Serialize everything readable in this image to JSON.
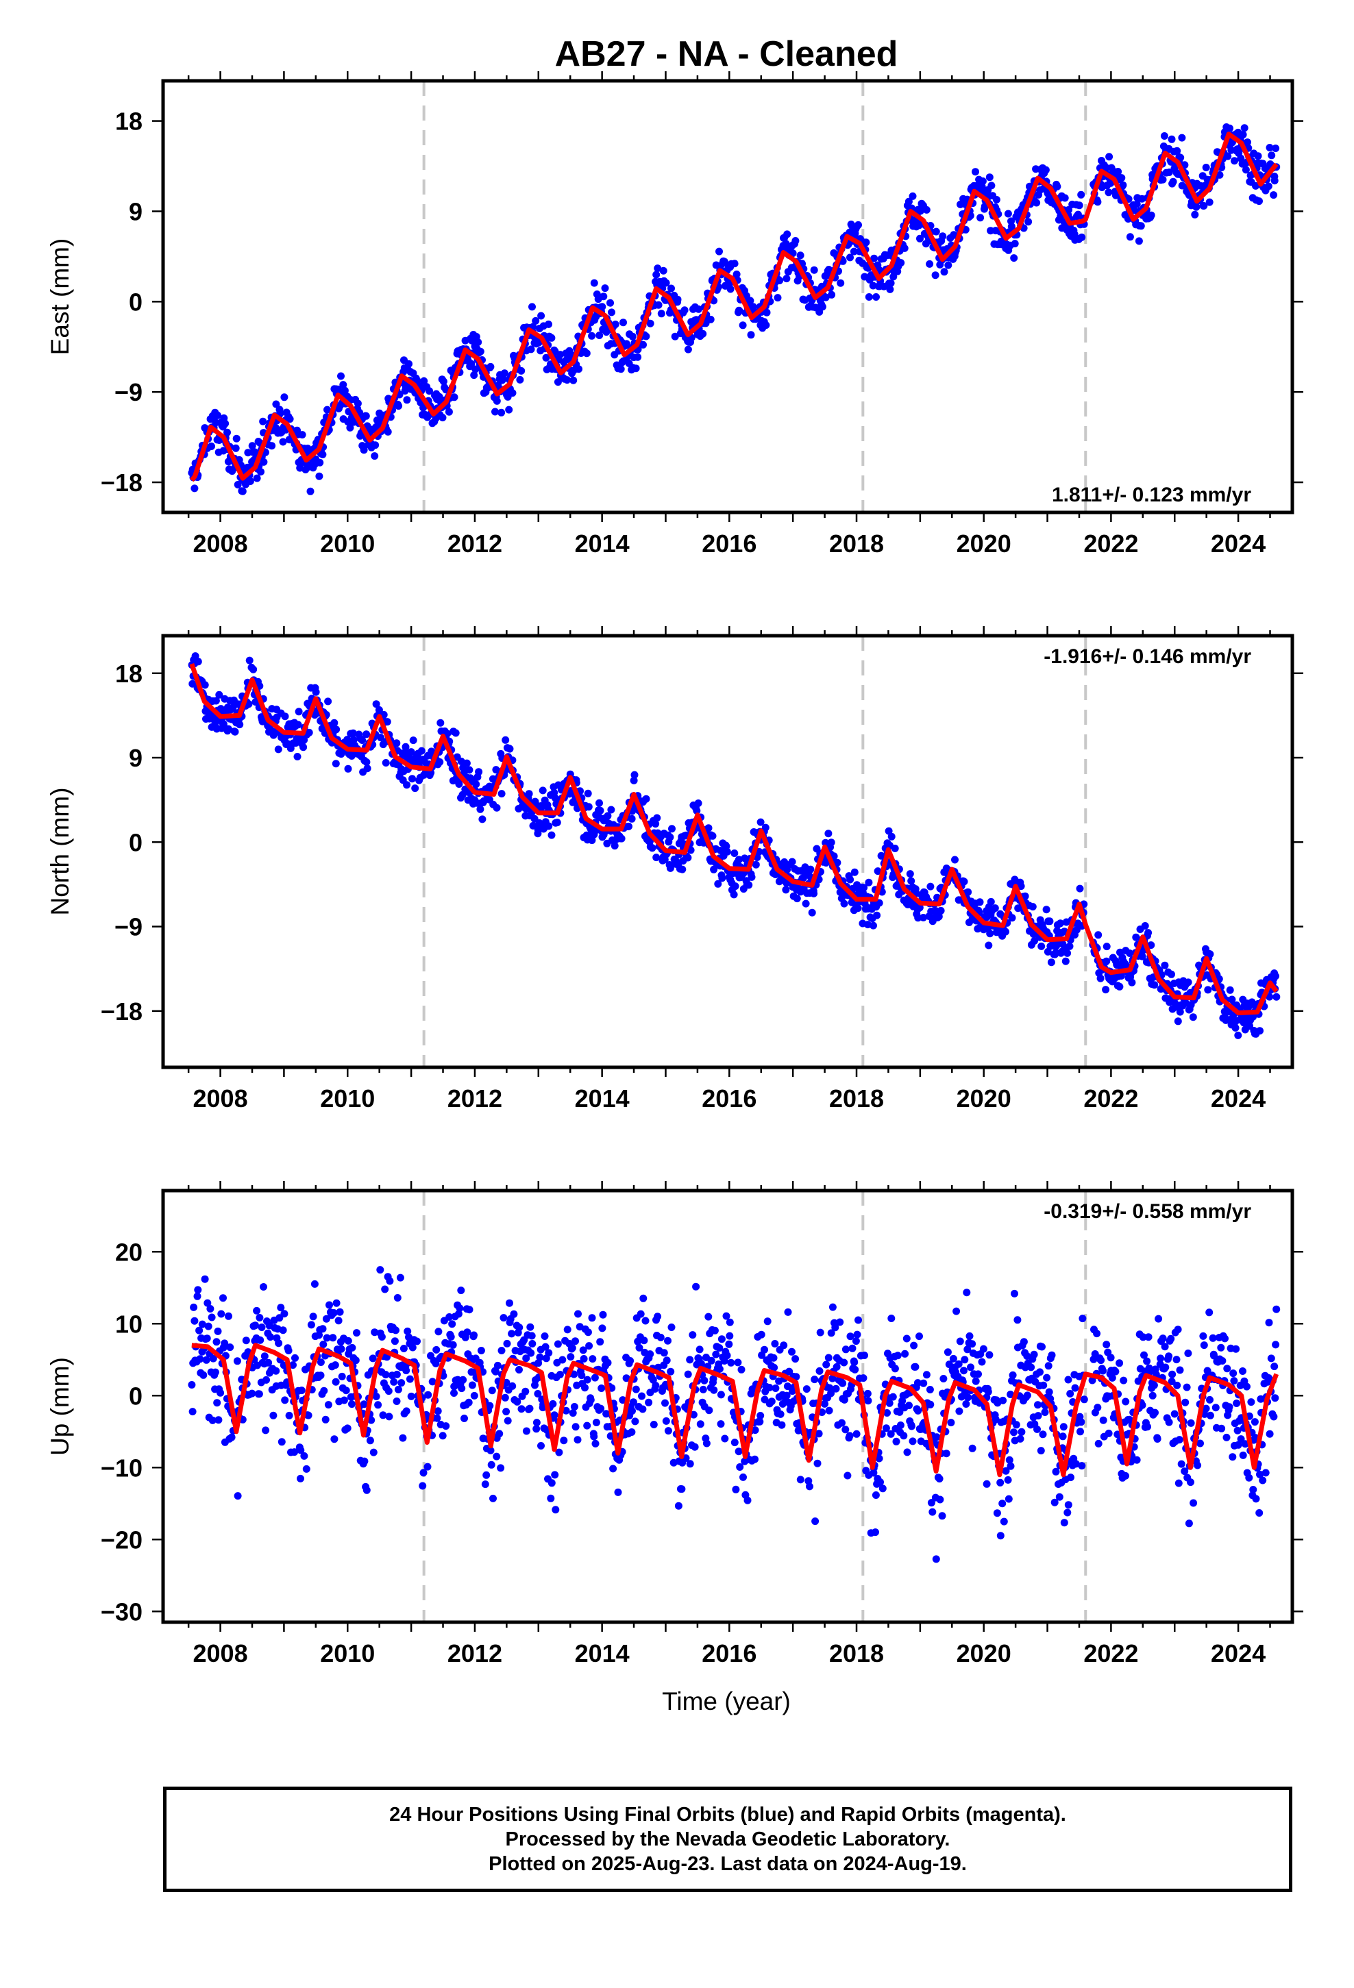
{
  "figure": {
    "title": "AB27  - NA - Cleaned",
    "xlabel": "Time (year)",
    "footer_lines": [
      "24 Hour Positions Using Final Orbits (blue) and Rapid Orbits (magenta).",
      "Processed by the Nevada Geodetic Laboratory.",
      "Plotted on 2025-Aug-23. Last data on 2024-Aug-19."
    ],
    "colors": {
      "points": "#0000ff",
      "model": "#ff0000",
      "breaks": "#c8c8c8",
      "axes": "#000000"
    }
  },
  "chart_data": [
    {
      "type": "scatter",
      "component": "East",
      "ylabel": "East (mm)",
      "rate_text": "1.811+/- 0.123 mm/yr",
      "rate_position": "bottom-right",
      "xlim": [
        2007.1,
        2024.85
      ],
      "ylim": [
        -21,
        22
      ],
      "xticks": [
        2008,
        2010,
        2012,
        2014,
        2016,
        2018,
        2020,
        2022,
        2024
      ],
      "yticks": [
        18,
        9,
        0,
        -9,
        -18
      ],
      "vertical_breaks": [
        2011.2,
        2018.1,
        2021.6
      ],
      "series": [
        {
          "kind": "model",
          "x": [
            2007.55,
            2007.6,
            2007.85,
            2008.05,
            2008.35,
            2008.55,
            2008.85,
            2009.05,
            2009.35,
            2009.55,
            2009.85,
            2010.05,
            2010.35,
            2010.55,
            2010.85,
            2011.05,
            2011.35,
            2011.55,
            2011.85,
            2012.05,
            2012.35,
            2012.55,
            2012.85,
            2013.05,
            2013.35,
            2013.55,
            2013.85,
            2014.05,
            2014.35,
            2014.55,
            2014.85,
            2015.05,
            2015.35,
            2015.55,
            2015.85,
            2016.05,
            2016.35,
            2016.55,
            2016.85,
            2017.05,
            2017.35,
            2017.55,
            2017.85,
            2018.05,
            2018.35,
            2018.55,
            2018.85,
            2019.05,
            2019.35,
            2019.55,
            2019.85,
            2020.05,
            2020.35,
            2020.55,
            2020.85,
            2021.05,
            2021.35,
            2021.55,
            2021.6,
            2021.85,
            2022.05,
            2022.35,
            2022.55,
            2022.85,
            2023.05,
            2023.35,
            2023.55,
            2023.85,
            2024.05,
            2024.35,
            2024.6
          ],
          "y": [
            -17.8,
            -17.4,
            -12.5,
            -13.5,
            -17.6,
            -16.5,
            -11.3,
            -12.2,
            -15.8,
            -14.7,
            -9.3,
            -10.4,
            -13.8,
            -12.6,
            -7.4,
            -8.3,
            -11.2,
            -10.0,
            -4.8,
            -5.7,
            -9.2,
            -8.2,
            -2.8,
            -3.6,
            -7.1,
            -6.0,
            -0.6,
            -1.4,
            -5.3,
            -4.3,
            1.3,
            0.4,
            -3.3,
            -2.2,
            3.1,
            2.3,
            -1.6,
            -0.5,
            4.9,
            4.0,
            0.4,
            1.4,
            6.5,
            5.8,
            2.3,
            3.6,
            9.0,
            8.1,
            4.2,
            5.5,
            11.0,
            10.1,
            6.3,
            7.3,
            12.3,
            11.3,
            7.8,
            8.0,
            8.2,
            13.0,
            12.2,
            8.2,
            9.3,
            14.8,
            13.9,
            10.0,
            11.3,
            16.7,
            15.8,
            11.7,
            13.7
          ]
        }
      ]
    },
    {
      "type": "scatter",
      "component": "North",
      "ylabel": "North (mm)",
      "rate_text": "-1.916+/- 0.146 mm/yr",
      "rate_position": "top-right",
      "xlim": [
        2007.1,
        2024.85
      ],
      "ylim": [
        -24,
        22
      ],
      "xticks": [
        2008,
        2010,
        2012,
        2014,
        2016,
        2018,
        2020,
        2022,
        2024
      ],
      "yticks": [
        18,
        9,
        0,
        -9,
        -18
      ],
      "vertical_breaks": [
        2011.2,
        2018.1,
        2021.6
      ],
      "series": [
        {
          "kind": "model",
          "x": [
            2007.55,
            2007.75,
            2008.0,
            2008.3,
            2008.5,
            2008.75,
            2009.0,
            2009.3,
            2009.5,
            2009.75,
            2010.0,
            2010.3,
            2010.5,
            2010.75,
            2011.0,
            2011.3,
            2011.5,
            2011.75,
            2012.0,
            2012.3,
            2012.5,
            2012.75,
            2013.0,
            2013.3,
            2013.5,
            2013.75,
            2014.0,
            2014.3,
            2014.5,
            2014.75,
            2015.0,
            2015.3,
            2015.5,
            2015.75,
            2016.0,
            2016.3,
            2016.5,
            2016.75,
            2017.0,
            2017.3,
            2017.5,
            2017.75,
            2018.0,
            2018.3,
            2018.5,
            2018.75,
            2019.0,
            2019.3,
            2019.5,
            2019.75,
            2020.0,
            2020.3,
            2020.5,
            2020.75,
            2021.0,
            2021.3,
            2021.5,
            2021.6,
            2021.85,
            2022.0,
            2022.3,
            2022.5,
            2022.75,
            2023.0,
            2023.3,
            2023.5,
            2023.75,
            2024.0,
            2024.3,
            2024.5,
            2024.6
          ],
          "y": [
            19.0,
            15.0,
            13.4,
            13.5,
            17.3,
            13.0,
            11.7,
            11.6,
            15.3,
            11.1,
            9.9,
            9.8,
            13.4,
            9.1,
            8.0,
            7.8,
            11.3,
            7.2,
            5.3,
            5.1,
            9.1,
            4.8,
            3.1,
            3.1,
            6.9,
            2.5,
            1.4,
            1.4,
            5.1,
            0.9,
            -0.9,
            -1.1,
            2.9,
            -1.5,
            -2.8,
            -2.9,
            1.2,
            -2.9,
            -4.2,
            -4.6,
            -0.5,
            -4.4,
            -6.1,
            -6.1,
            -0.8,
            -5.0,
            -6.5,
            -6.6,
            -2.9,
            -6.9,
            -8.6,
            -8.9,
            -4.7,
            -8.8,
            -10.4,
            -10.3,
            -6.6,
            -8.8,
            -13.3,
            -13.9,
            -13.6,
            -10.1,
            -14.6,
            -16.5,
            -16.6,
            -12.4,
            -16.8,
            -18.2,
            -18.1,
            -15.0,
            -15.9
          ]
        }
      ]
    },
    {
      "type": "scatter",
      "component": "Up",
      "ylabel": "Up (mm)",
      "rate_text": "-0.319+/- 0.558 mm/yr",
      "rate_position": "top-right",
      "xlim": [
        2007.1,
        2024.85
      ],
      "ylim": [
        -31.5,
        28.5
      ],
      "xticks": [
        2008,
        2010,
        2012,
        2014,
        2016,
        2018,
        2020,
        2022,
        2024
      ],
      "yticks": [
        20,
        10,
        0,
        -10,
        -20,
        -30
      ],
      "vertical_breaks": [
        2011.2,
        2018.1,
        2021.6
      ],
      "series": [
        {
          "kind": "model",
          "x": [
            2007.55,
            2007.8,
            2008.05,
            2008.25,
            2008.45,
            2008.55,
            2008.85,
            2009.05,
            2009.25,
            2009.45,
            2009.55,
            2009.85,
            2010.05,
            2010.25,
            2010.45,
            2010.55,
            2010.85,
            2011.05,
            2011.25,
            2011.45,
            2011.55,
            2011.85,
            2012.05,
            2012.25,
            2012.45,
            2012.55,
            2012.85,
            2013.05,
            2013.25,
            2013.45,
            2013.55,
            2013.85,
            2014.05,
            2014.25,
            2014.45,
            2014.55,
            2014.85,
            2015.05,
            2015.25,
            2015.45,
            2015.55,
            2015.85,
            2016.05,
            2016.25,
            2016.45,
            2016.55,
            2016.85,
            2017.05,
            2017.25,
            2017.45,
            2017.55,
            2017.85,
            2018.05,
            2018.25,
            2018.45,
            2018.55,
            2018.85,
            2019.05,
            2019.25,
            2019.45,
            2019.55,
            2019.85,
            2020.05,
            2020.25,
            2020.45,
            2020.55,
            2020.85,
            2021.05,
            2021.25,
            2021.45,
            2021.6,
            2021.85,
            2022.05,
            2022.25,
            2022.45,
            2022.55,
            2022.85,
            2023.05,
            2023.25,
            2023.45,
            2023.55,
            2023.85,
            2024.05,
            2024.25,
            2024.45,
            2024.6
          ],
          "y": [
            7.0,
            6.8,
            5.0,
            -5.0,
            4.5,
            7.0,
            6.0,
            5.0,
            -5.2,
            4.0,
            6.5,
            5.5,
            4.5,
            -5.5,
            4.0,
            6.3,
            5.2,
            4.2,
            -6.5,
            3.5,
            5.8,
            4.8,
            3.8,
            -7.0,
            3.0,
            5.0,
            4.2,
            3.2,
            -7.5,
            2.5,
            4.5,
            3.5,
            2.8,
            -8.0,
            2.0,
            4.3,
            3.3,
            2.5,
            -8.5,
            1.5,
            3.8,
            2.8,
            2.0,
            -8.5,
            1.0,
            3.5,
            2.8,
            1.8,
            -9.0,
            0.8,
            3.3,
            2.5,
            1.5,
            -10.0,
            0.0,
            2.0,
            1.0,
            -1.0,
            -10.5,
            -0.5,
            1.8,
            0.8,
            -1.2,
            -11.0,
            -1.2,
            1.5,
            0.5,
            -1.5,
            -11.0,
            -1.5,
            3.0,
            2.5,
            1.0,
            -9.5,
            0.5,
            2.8,
            1.8,
            0.0,
            -10.0,
            0.0,
            2.5,
            1.5,
            0.0,
            -10.0,
            -0.5,
            3.0
          ]
        }
      ]
    }
  ]
}
